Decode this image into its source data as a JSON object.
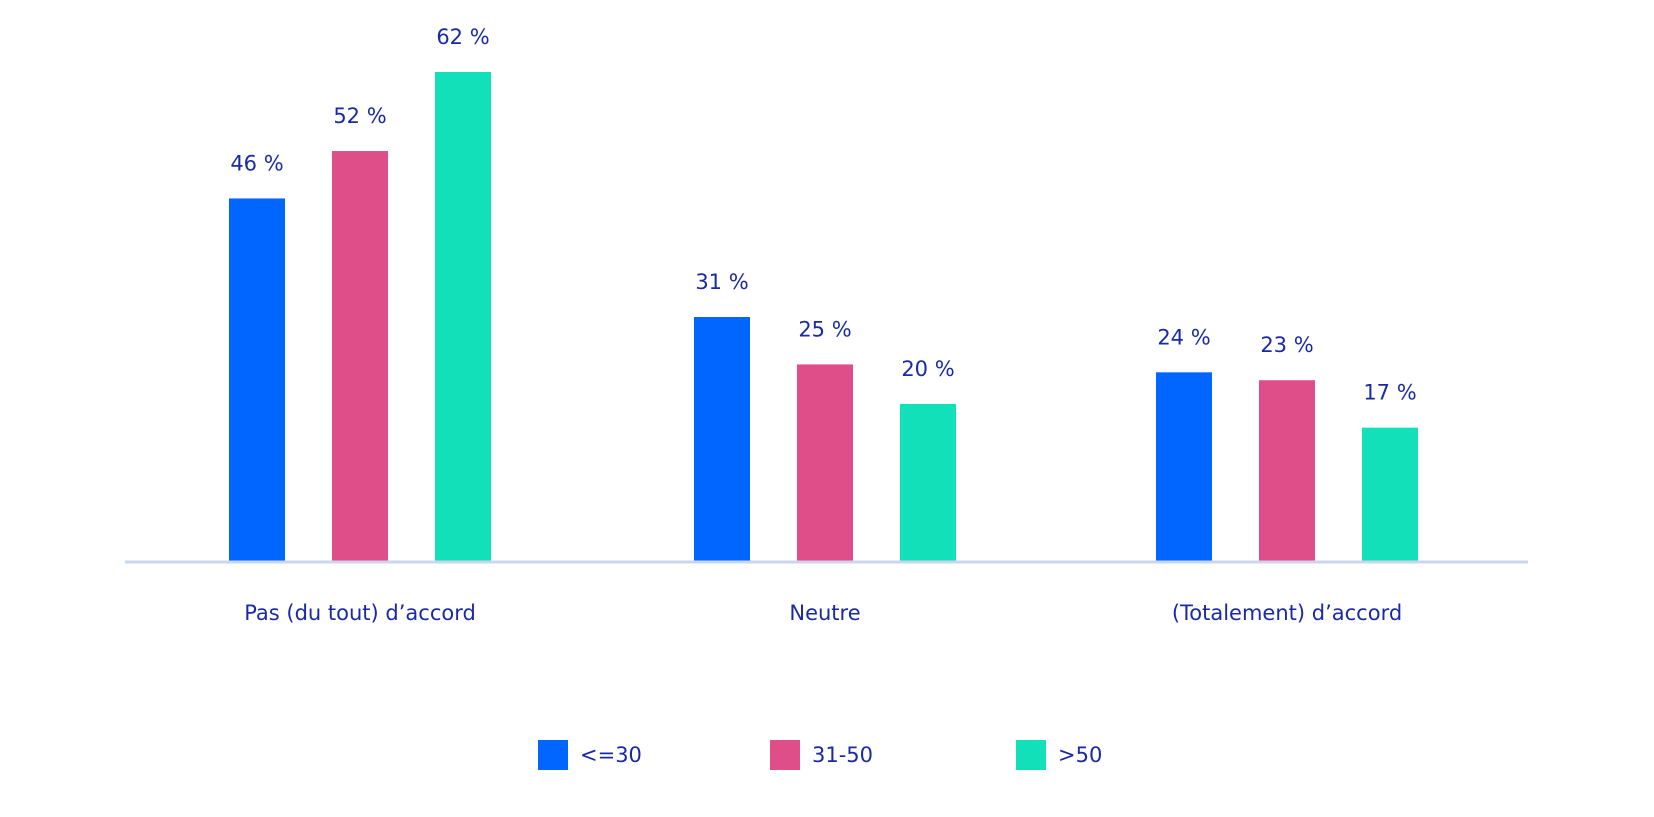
{
  "chart_data": {
    "type": "bar",
    "categories": [
      "Pas (du tout) d’accord",
      "Neutre",
      "(Totalement) d’accord"
    ],
    "series": [
      {
        "name": "<=30",
        "color": "#0066ff",
        "values": [
          46,
          31,
          24
        ],
        "labels": [
          "46 %",
          "31 %",
          "24 %"
        ]
      },
      {
        "name": "31-50",
        "color": "#e04e8a",
        "values": [
          52,
          25,
          23
        ],
        "labels": [
          "52 %",
          "25 %",
          "23 %"
        ]
      },
      {
        "name": ">50",
        "color": "#12e0b8",
        "values": [
          62,
          20,
          17
        ],
        "labels": [
          "62 %",
          "20 %",
          "17 %"
        ]
      }
    ],
    "ylim": [
      0,
      62
    ],
    "grid": false,
    "legend_position": "bottom-center",
    "axis_color": "#ccd6ea",
    "text_color": "#1a2aa6"
  }
}
